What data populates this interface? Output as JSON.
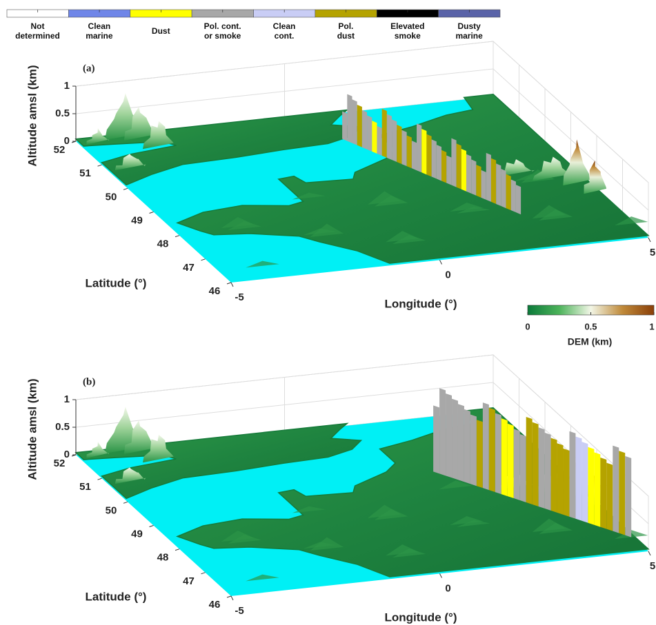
{
  "class_legend": {
    "categories": [
      "Not\ndetermined",
      "Clean\nmarine",
      "Dust",
      "Pol. cont.\nor smoke",
      "Clean\ncont.",
      "Pol.\ndust",
      "Elevated\nsmoke",
      "Dusty\nmarine"
    ],
    "colors": [
      "#ffffff",
      "#6f86e8",
      "#ffff00",
      "#a8a8a8",
      "#c9cdf5",
      "#b5a300",
      "#000000",
      "#5a63a8"
    ]
  },
  "dem_colorbar": {
    "type": "colorbar",
    "label": "DEM (km)",
    "lim": [
      0,
      1
    ],
    "ticks": [
      0,
      0.5,
      1
    ],
    "colors": [
      "#0b7a3a",
      "#4cb35a",
      "#f2f6e6",
      "#c08a3a",
      "#8a3f08"
    ]
  },
  "chart_data": [
    {
      "type": "surface3d",
      "panel_label": "(a)",
      "xlabel": "Longitude (°)",
      "ylabel": "Latitude (°)",
      "zlabel": "Altitude amsl (km)",
      "xlim": [
        -5,
        5
      ],
      "xticks": [
        -5,
        0,
        5
      ],
      "ylim": [
        46,
        52
      ],
      "yticks": [
        46,
        47,
        48,
        49,
        50,
        51,
        52
      ],
      "zlim": [
        0,
        1
      ],
      "zticks": [
        0,
        0.5,
        1
      ],
      "grid": true
    },
    {
      "type": "surface3d",
      "panel_label": "(b)",
      "xlabel": "Longitude (°)",
      "ylabel": "Latitude (°)",
      "zlabel": "Altitude amsl (km)",
      "xlim": [
        -5,
        5
      ],
      "xticks": [
        -5,
        0,
        5
      ],
      "ylim": [
        46,
        52
      ],
      "yticks": [
        46,
        47,
        48,
        49,
        50,
        51,
        52
      ],
      "zlim": [
        0,
        1
      ],
      "zticks": [
        0,
        0.5,
        1
      ],
      "grid": true
    }
  ]
}
